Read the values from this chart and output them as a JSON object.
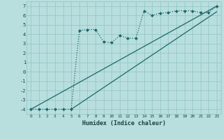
{
  "title": "",
  "xlabel": "Humidex (Indice chaleur)",
  "ylabel": "",
  "bg_color": "#b8dede",
  "grid_color": "#90c4c4",
  "line_color": "#1a6868",
  "xlim": [
    -0.5,
    23.5
  ],
  "ylim": [
    -4.5,
    7.5
  ],
  "xticks": [
    0,
    1,
    2,
    3,
    4,
    5,
    6,
    7,
    8,
    9,
    10,
    11,
    12,
    13,
    14,
    15,
    16,
    17,
    18,
    19,
    20,
    21,
    22,
    23
  ],
  "yticks": [
    -4,
    -3,
    -2,
    -1,
    0,
    1,
    2,
    3,
    4,
    5,
    6,
    7
  ],
  "line1_x": [
    0,
    1,
    2,
    3,
    4,
    5,
    6,
    7,
    8,
    9,
    10,
    11,
    12,
    13,
    14,
    15,
    16,
    17,
    18,
    19,
    20,
    21,
    22,
    23
  ],
  "line1_y": [
    -4,
    -4,
    -4,
    -4,
    -4,
    -4,
    4.4,
    4.5,
    4.5,
    3.2,
    3.1,
    3.85,
    3.6,
    3.55,
    6.5,
    6.0,
    6.25,
    6.3,
    6.5,
    6.5,
    6.5,
    6.3,
    6.3,
    7.0
  ],
  "line2_x": [
    0,
    23
  ],
  "line2_y": [
    -4,
    7
  ],
  "line3_x": [
    5,
    23
  ],
  "line3_y": [
    -4,
    6.4
  ],
  "markersize": 2.5,
  "linewidth": 0.9
}
